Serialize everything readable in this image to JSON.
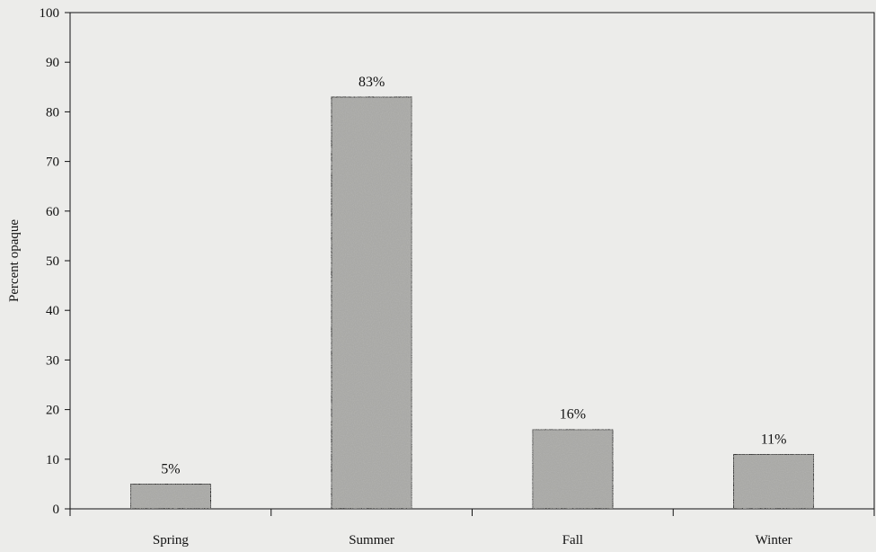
{
  "chart_data": {
    "type": "bar",
    "categories": [
      "Spring",
      "Summer",
      "Fall",
      "Winter"
    ],
    "values": [
      5,
      83,
      16,
      11
    ],
    "data_labels": [
      "5%",
      "83%",
      "16%",
      "11%"
    ],
    "ylabel": "Percent opaque",
    "ylim": [
      0,
      100
    ],
    "yticks": [
      0,
      10,
      20,
      30,
      40,
      50,
      60,
      70,
      80,
      90,
      100
    ],
    "grid": false,
    "legend": "none",
    "colors": {
      "background": "#ececea",
      "bar_fill": "#a9a9a6",
      "bar_stroke": "#111111",
      "axis": "#111111"
    }
  }
}
